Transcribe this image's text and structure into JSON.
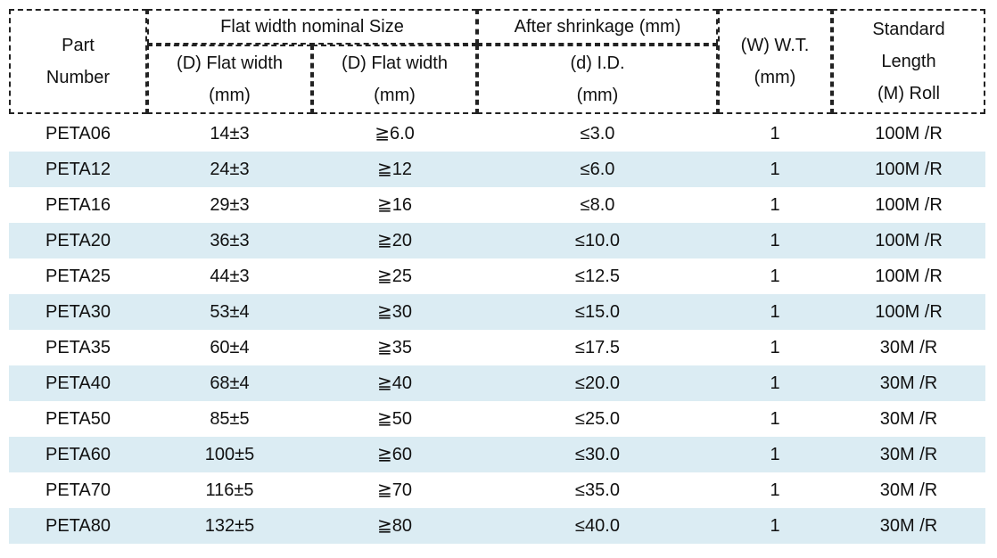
{
  "header": {
    "part_number": [
      "Part",
      "Number"
    ],
    "flat_width_group": "Flat width nominal Size",
    "after_shrinkage_group": "After shrinkage (mm)",
    "flat_width_1": [
      "(D) Flat width",
      "(mm)"
    ],
    "flat_width_2": [
      "(D) Flat width",
      "(mm)"
    ],
    "inner_diameter": [
      "(d) I.D.",
      "(mm)"
    ],
    "wall_thickness": [
      "(W) W.T.",
      "(mm)"
    ],
    "standard_length": [
      "Standard",
      "Length",
      "(M) Roll"
    ]
  },
  "table": {
    "rows": [
      [
        "PETA06",
        "14±3",
        "≧6.0",
        "≤3.0",
        "1",
        "100M /R"
      ],
      [
        "PETA12",
        "24±3",
        "≧12",
        "≤6.0",
        "1",
        "100M /R"
      ],
      [
        "PETA16",
        "29±3",
        "≧16",
        "≤8.0",
        "1",
        "100M /R"
      ],
      [
        "PETA20",
        "36±3",
        "≧20",
        "≤10.0",
        "1",
        "100M /R"
      ],
      [
        "PETA25",
        "44±3",
        "≧25",
        "≤12.5",
        "1",
        "100M /R"
      ],
      [
        "PETA30",
        "53±4",
        "≧30",
        "≤15.0",
        "1",
        "100M /R"
      ],
      [
        "PETA35",
        "60±4",
        "≧35",
        "≤17.5",
        "1",
        "30M /R"
      ],
      [
        "PETA40",
        "68±4",
        "≧40",
        "≤20.0",
        "1",
        "30M /R"
      ],
      [
        "PETA50",
        "85±5",
        "≧50",
        "≤25.0",
        "1",
        "30M /R"
      ],
      [
        "PETA60",
        "100±5",
        "≧60",
        "≤30.0",
        "1",
        "30M /R"
      ],
      [
        "PETA70",
        "116±5",
        "≧70",
        "≤35.0",
        "1",
        "30M /R"
      ],
      [
        "PETA80",
        "132±5",
        "≧80",
        "≤40.0",
        "1",
        "30M /R"
      ]
    ]
  }
}
